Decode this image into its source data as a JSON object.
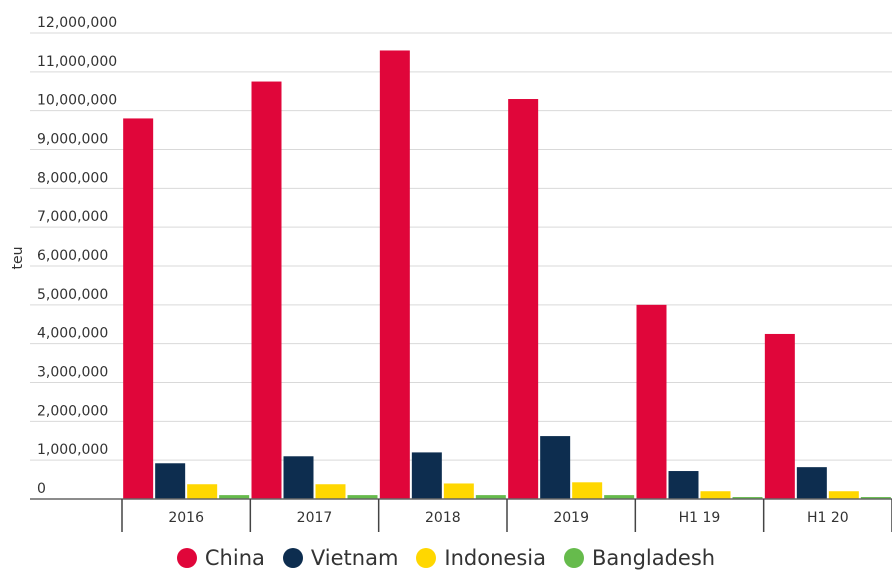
{
  "chart_data": {
    "type": "bar",
    "title": "",
    "xlabel": "",
    "ylabel": "teu",
    "ylim": [
      0,
      12000000
    ],
    "yticks": [
      0,
      1000000,
      2000000,
      3000000,
      4000000,
      5000000,
      6000000,
      7000000,
      8000000,
      9000000,
      10000000,
      11000000,
      12000000
    ],
    "ytick_labels": [
      "0",
      "1,000,000",
      "2,000,000",
      "3,000,000",
      "4,000,000",
      "5,000,000",
      "6,000,000",
      "7,000,000",
      "8,000,000",
      "9,000,000",
      "10,000,000",
      "11,000,000",
      "12,000,000"
    ],
    "grid": "horizontal",
    "legend_position": "bottom-center",
    "categories": [
      "2016",
      "2017",
      "2018",
      "2019",
      "H1 19",
      "H1 20"
    ],
    "series": [
      {
        "name": "China",
        "color": "#e0063a",
        "values": [
          9800000,
          10750000,
          11550000,
          10300000,
          5000000,
          4250000
        ]
      },
      {
        "name": "Vietnam",
        "color": "#0d2d4f",
        "values": [
          920000,
          1100000,
          1200000,
          1620000,
          720000,
          820000
        ]
      },
      {
        "name": "Indonesia",
        "color": "#ffd700",
        "values": [
          380000,
          380000,
          400000,
          430000,
          200000,
          200000
        ]
      },
      {
        "name": "Bangladesh",
        "color": "#66bb4c",
        "values": [
          100000,
          100000,
          100000,
          100000,
          50000,
          50000
        ]
      }
    ]
  }
}
